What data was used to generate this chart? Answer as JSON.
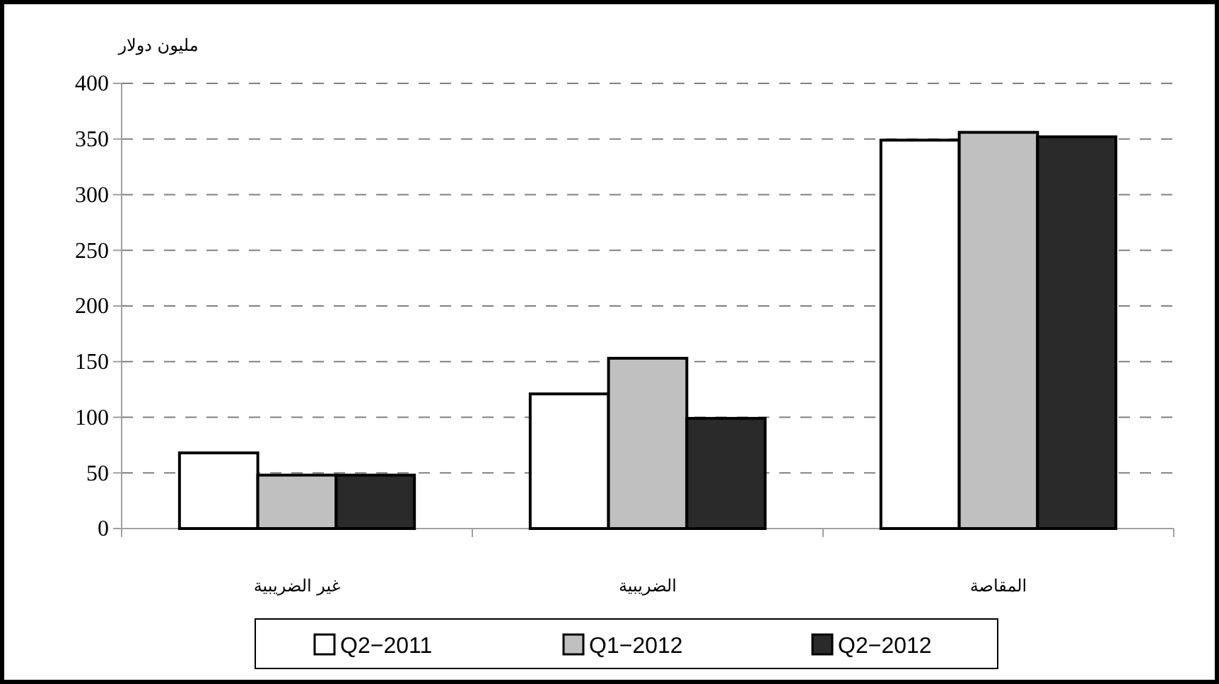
{
  "chart_data": {
    "type": "bar",
    "ylabel": "مليون دولار",
    "categories": [
      "غير الضريبية",
      "الضريبية",
      "المقاصة"
    ],
    "series": [
      {
        "name": "Q2−2011",
        "color": "#ffffff",
        "values": [
          68,
          121,
          349
        ]
      },
      {
        "name": "Q1−2012",
        "color": "#c0c0c0",
        "values": [
          48,
          153,
          356
        ]
      },
      {
        "name": "Q2−2012",
        "color": "#2a2a2a",
        "values": [
          48,
          99,
          352
        ]
      }
    ],
    "ylim": [
      0,
      400
    ],
    "yticks": [
      0,
      50,
      100,
      150,
      200,
      250,
      300,
      350,
      400
    ],
    "grid": "y",
    "legend": "bottom"
  }
}
